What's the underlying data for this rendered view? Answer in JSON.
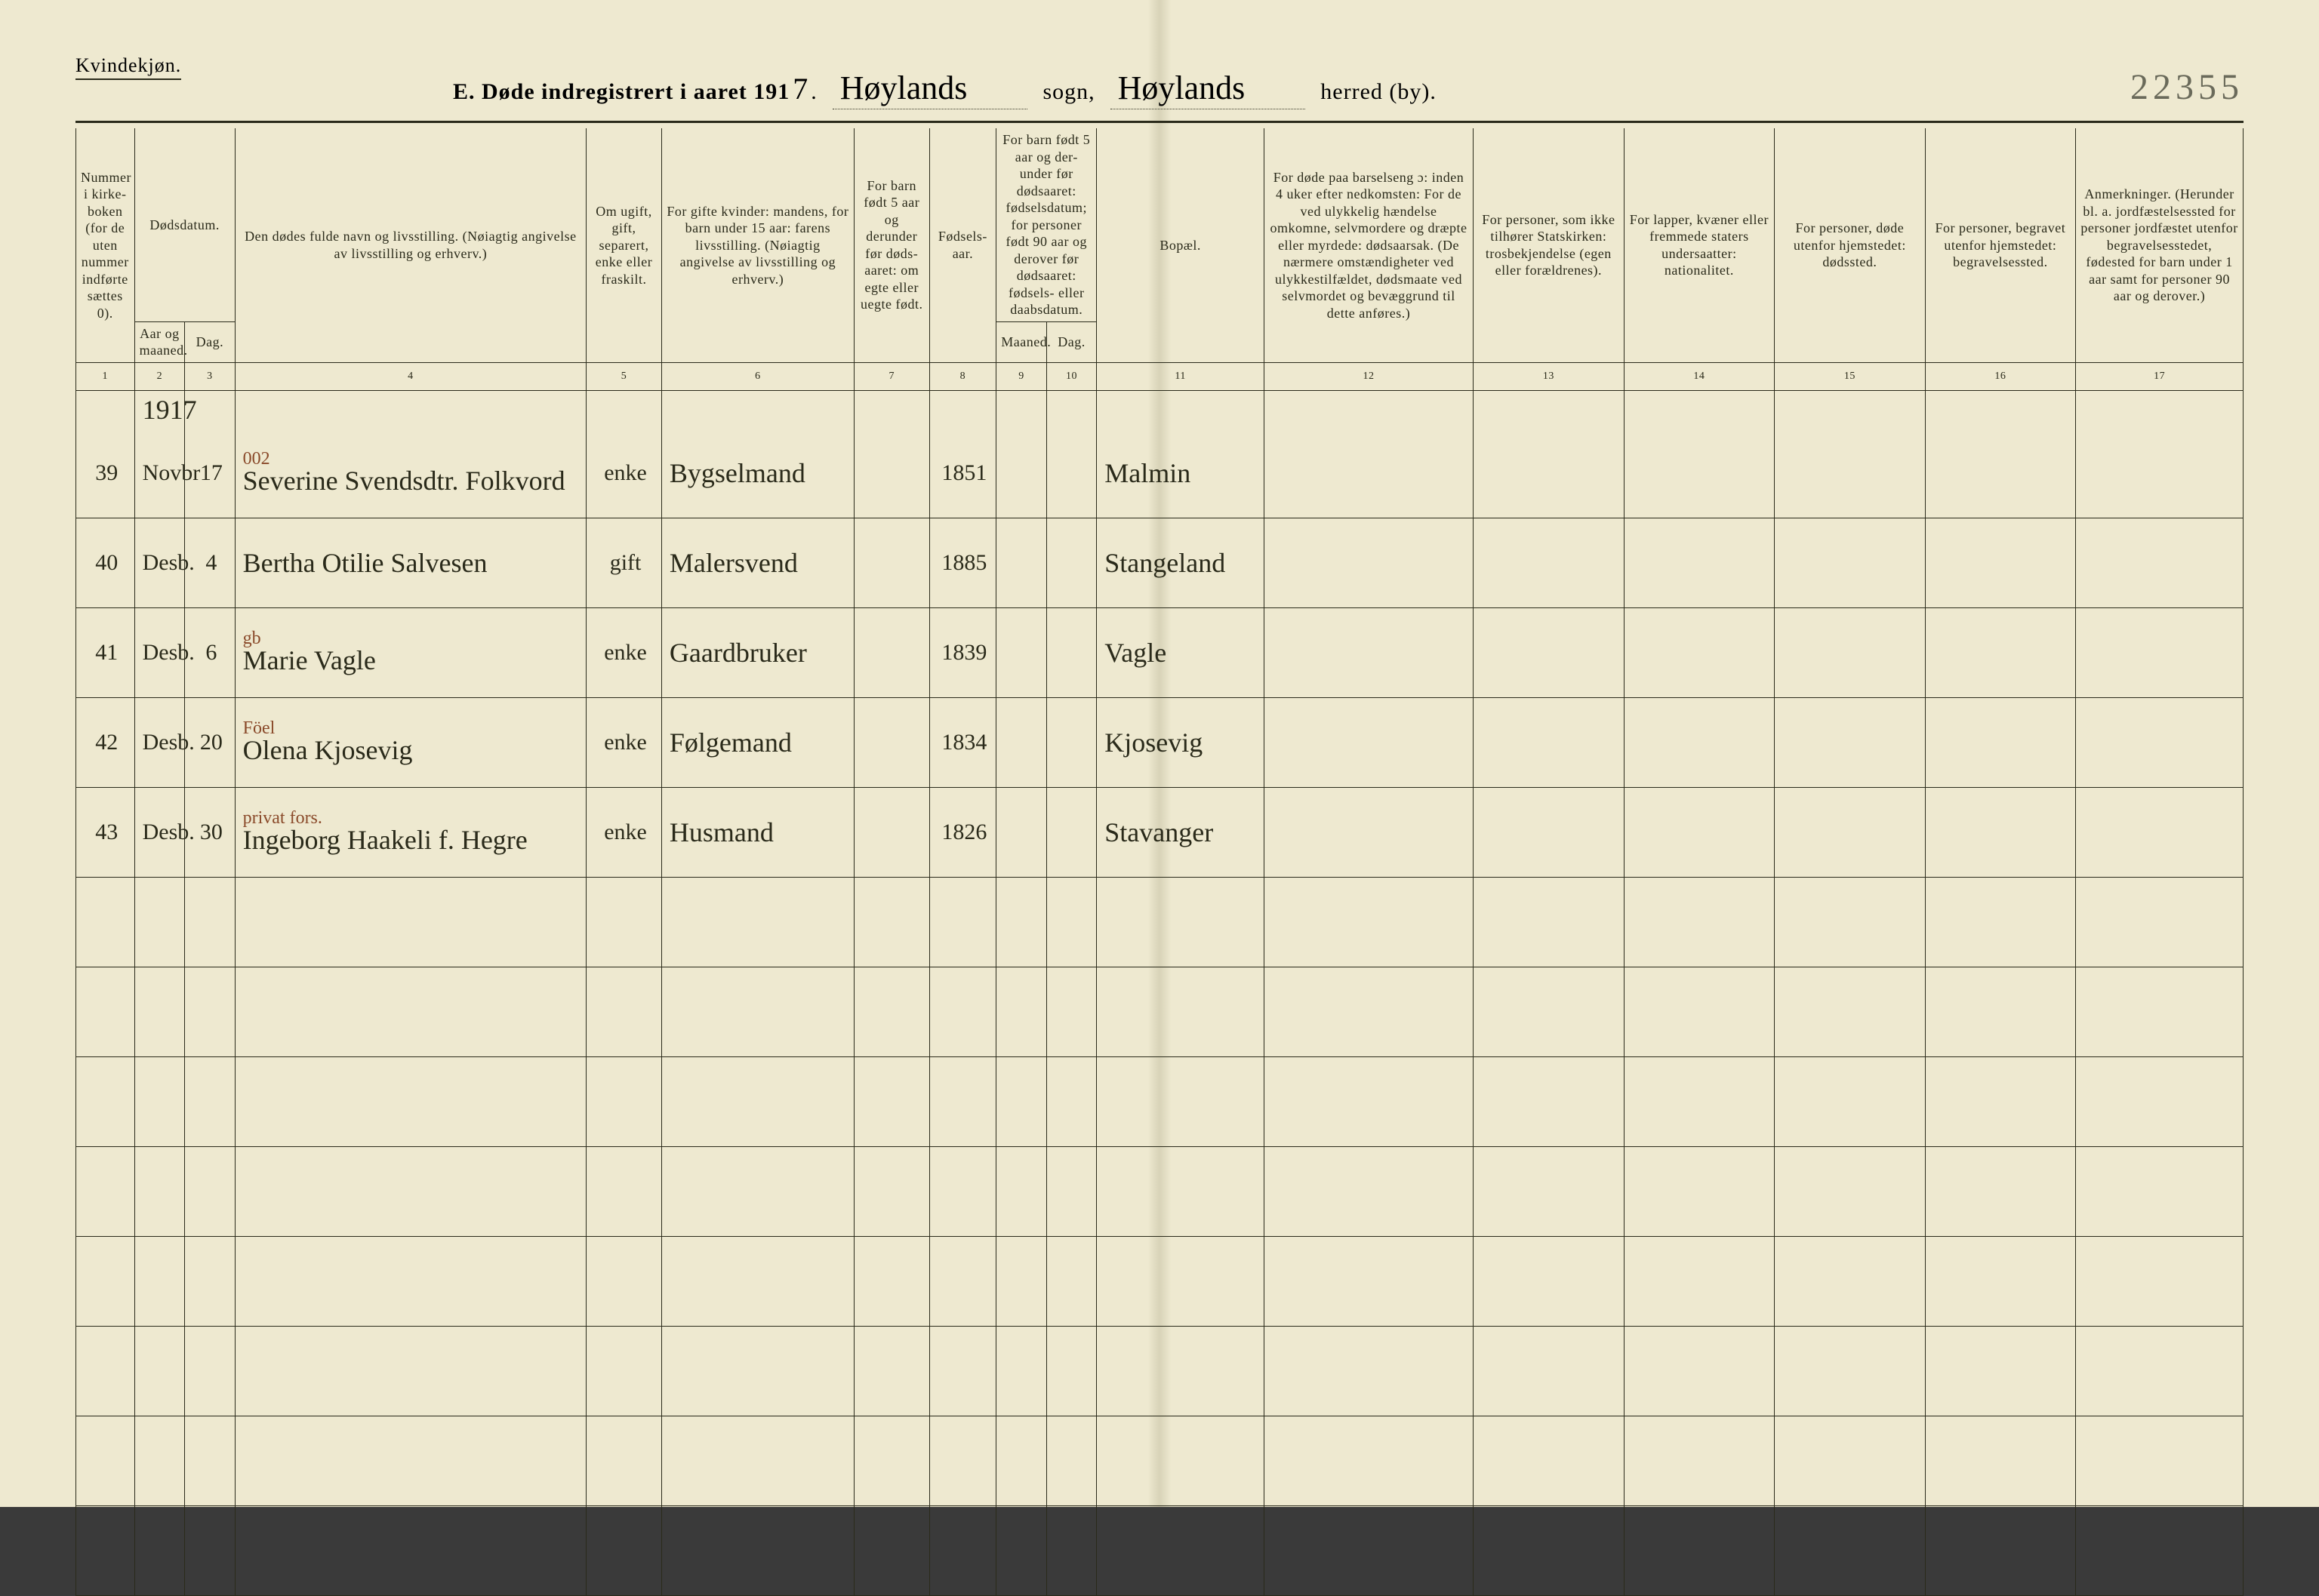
{
  "header": {
    "genderLabel": "Kvindekjøn.",
    "titlePrefix": "E.  Døde indregistrert i aaret 191",
    "yearDigit": "7",
    "sognValue": "Høylands",
    "sognLabel": "sogn,",
    "herredValue": "Høylands",
    "herredLabel": "herred (by).",
    "stampNumber": "22355"
  },
  "colors": {
    "paper": "#eee9d0",
    "ink": "#2a2a1a",
    "pencil": "#8a4a2a",
    "fold": "#d8d3b8"
  },
  "columnHeaders": {
    "c1": "Nummer i kirke-boken (for de uten nummer indførte sættes 0).",
    "c2_top": "Dødsdatum.",
    "c2": "Aar og maaned.",
    "c3": "Dag.",
    "c4": "Den dødes fulde navn og livsstilling.\n(Nøiagtig angivelse av livsstilling og erhverv.)",
    "c5": "Om ugift, gift, separert, enke eller fraskilt.",
    "c6": "For gifte kvinder:\nmandens,\nfor barn under 15 aar:\nfarens livsstilling.\n(Nøiagtig angivelse av livsstilling og erhverv.)",
    "c7": "For barn født 5 aar og derunder før døds-aaret: om egte eller uegte født.",
    "c8": "Fødsels-aar.",
    "c9_top": "For barn født 5 aar og der-under før dødsaaret: fødselsdatum; for personer født 90 aar og derover før dødsaaret: fødsels- eller daabsdatum.",
    "c9": "Maaned.",
    "c10": "Dag.",
    "c11": "Bopæl.",
    "c12": "For døde paa barselseng ɔ: inden 4 uker efter nedkomsten:\nFor de ved ulykkelig hændelse omkomne, selvmordere og dræpte eller myrdede: dødsaarsak.\n(De nærmere omstændigheter ved ulykkestilfældet, dødsmaate ved selvmordet og bevæggrund til dette anføres.)",
    "c13": "For personer, som ikke tilhører Statskirken: trosbekjendelse (egen eller forældrenes).",
    "c14": "For lapper, kvæner eller fremmede staters undersaatter: nationalitet.",
    "c15": "For personer, døde utenfor hjemstedet: dødssted.",
    "c16": "For personer, begravet utenfor hjemstedet: begravelsessted.",
    "c17": "Anmerkninger.\n(Herunder bl. a. jordfæstelsessted for personer jordfæstet utenfor begravelsesstedet, fødested for barn under 1 aar samt for personer 90 aar og derover.)"
  },
  "columnNumbers": [
    "1",
    "2",
    "3",
    "4",
    "5",
    "6",
    "7",
    "8",
    "9",
    "10",
    "11",
    "12",
    "13",
    "14",
    "15",
    "16",
    "17"
  ],
  "yearInline": "1917",
  "rows": [
    {
      "num": "39",
      "month": "Novbr",
      "day": "17",
      "annot": "002",
      "name": "Severine Svendsdtr. Folkvord",
      "status": "enke",
      "occupation": "Bygselmand",
      "birthYear": "1851",
      "residence": "Malmin"
    },
    {
      "num": "40",
      "month": "Desb.",
      "day": "4",
      "annot": "",
      "name": "Bertha Otilie Salvesen",
      "status": "gift",
      "occupation": "Malersvend",
      "birthYear": "1885",
      "residence": "Stangeland"
    },
    {
      "num": "41",
      "month": "Desb.",
      "day": "6",
      "annot": "gb",
      "name": "Marie Vagle",
      "status": "enke",
      "occupation": "Gaardbruker",
      "birthYear": "1839",
      "residence": "Vagle"
    },
    {
      "num": "42",
      "month": "Desb.",
      "day": "20",
      "annot": "Föel",
      "name": "Olena Kjosevig",
      "status": "enke",
      "occupation": "Følgemand",
      "birthYear": "1834",
      "residence": "Kjosevig"
    },
    {
      "num": "43",
      "month": "Desb.",
      "day": "30",
      "annot": "privat fors.",
      "name": "Ingeborg Haakeli f. Hegre",
      "status": "enke",
      "occupation": "Husmand",
      "birthYear": "1826",
      "residence": "Stavanger"
    }
  ],
  "emptyRowCount": 8
}
